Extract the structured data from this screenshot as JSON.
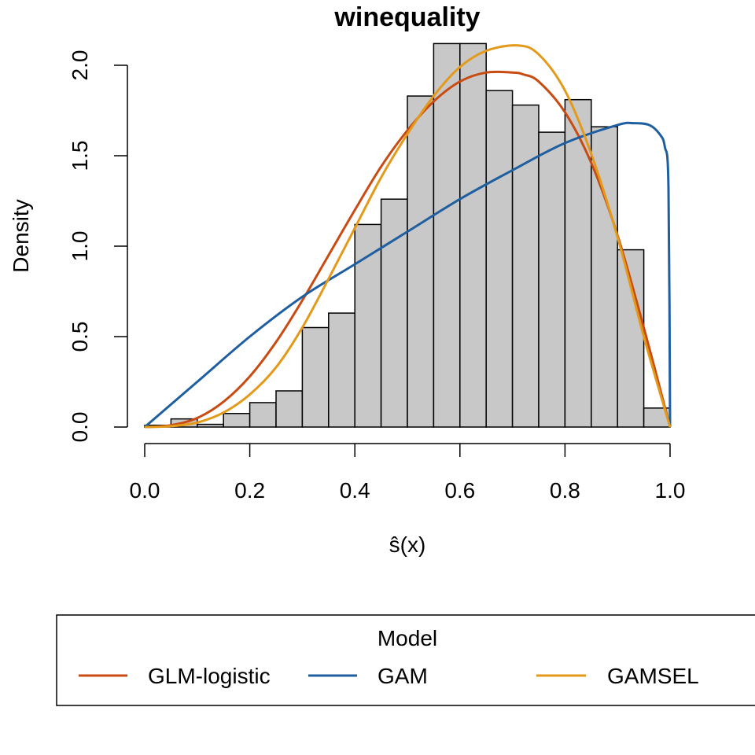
{
  "chart_data": {
    "type": "bar",
    "title": "winequality",
    "xlabel": "ŝ(x)",
    "ylabel": "Density",
    "xlim": [
      0,
      1
    ],
    "ylim": [
      0,
      2.2
    ],
    "x_ticks": [
      "0.0",
      "0.2",
      "0.4",
      "0.6",
      "0.8",
      "1.0"
    ],
    "y_ticks": [
      "0.0",
      "0.5",
      "1.0",
      "1.5",
      "2.0"
    ],
    "grid": false,
    "histogram": {
      "bin_width": 0.05,
      "bin_starts": [
        0.0,
        0.05,
        0.1,
        0.15,
        0.2,
        0.25,
        0.3,
        0.35,
        0.4,
        0.45,
        0.5,
        0.55,
        0.6,
        0.65,
        0.7,
        0.75,
        0.8,
        0.85,
        0.9,
        0.95
      ],
      "values": [
        0.01,
        0.045,
        0.015,
        0.075,
        0.135,
        0.2,
        0.55,
        0.63,
        1.12,
        1.26,
        1.83,
        2.12,
        2.12,
        1.86,
        1.78,
        1.63,
        1.81,
        1.66,
        0.98,
        0.105
      ],
      "fill": "#c8c8c8"
    },
    "series": [
      {
        "name": "GLM-logistic",
        "type": "line",
        "color": "#c94b12",
        "x": [
          0.0,
          0.05,
          0.1,
          0.15,
          0.2,
          0.25,
          0.3,
          0.35,
          0.4,
          0.45,
          0.5,
          0.55,
          0.6,
          0.65,
          0.7,
          0.72,
          0.75,
          0.8,
          0.85,
          0.9,
          0.95,
          1.0
        ],
        "y": [
          0.0,
          0.01,
          0.05,
          0.14,
          0.28,
          0.47,
          0.7,
          0.95,
          1.2,
          1.44,
          1.64,
          1.8,
          1.91,
          1.96,
          1.96,
          1.95,
          1.91,
          1.74,
          1.46,
          1.06,
          0.55,
          0.0
        ]
      },
      {
        "name": "GAM",
        "type": "line",
        "color": "#1f5fa0",
        "x": [
          0.0,
          0.1,
          0.2,
          0.3,
          0.4,
          0.5,
          0.6,
          0.7,
          0.8,
          0.9,
          0.93,
          0.96,
          0.98,
          0.99,
          0.997,
          1.0
        ],
        "y": [
          0.0,
          0.25,
          0.5,
          0.72,
          0.9,
          1.08,
          1.26,
          1.42,
          1.57,
          1.67,
          1.68,
          1.67,
          1.62,
          1.55,
          1.32,
          0.0
        ]
      },
      {
        "name": "GAMSEL",
        "type": "line",
        "color": "#e39a1a",
        "x": [
          0.0,
          0.05,
          0.1,
          0.15,
          0.2,
          0.25,
          0.3,
          0.35,
          0.4,
          0.45,
          0.5,
          0.55,
          0.6,
          0.65,
          0.71,
          0.75,
          0.8,
          0.85,
          0.9,
          0.95,
          1.0
        ],
        "y": [
          0.0,
          0.005,
          0.025,
          0.08,
          0.18,
          0.33,
          0.55,
          0.82,
          1.1,
          1.38,
          1.62,
          1.83,
          1.99,
          2.08,
          2.11,
          2.06,
          1.86,
          1.51,
          1.05,
          0.5,
          0.0
        ]
      }
    ],
    "legend": {
      "title": "Model",
      "placement": "bottom",
      "entries": [
        "GLM-logistic",
        "GAM",
        "GAMSEL"
      ]
    }
  }
}
